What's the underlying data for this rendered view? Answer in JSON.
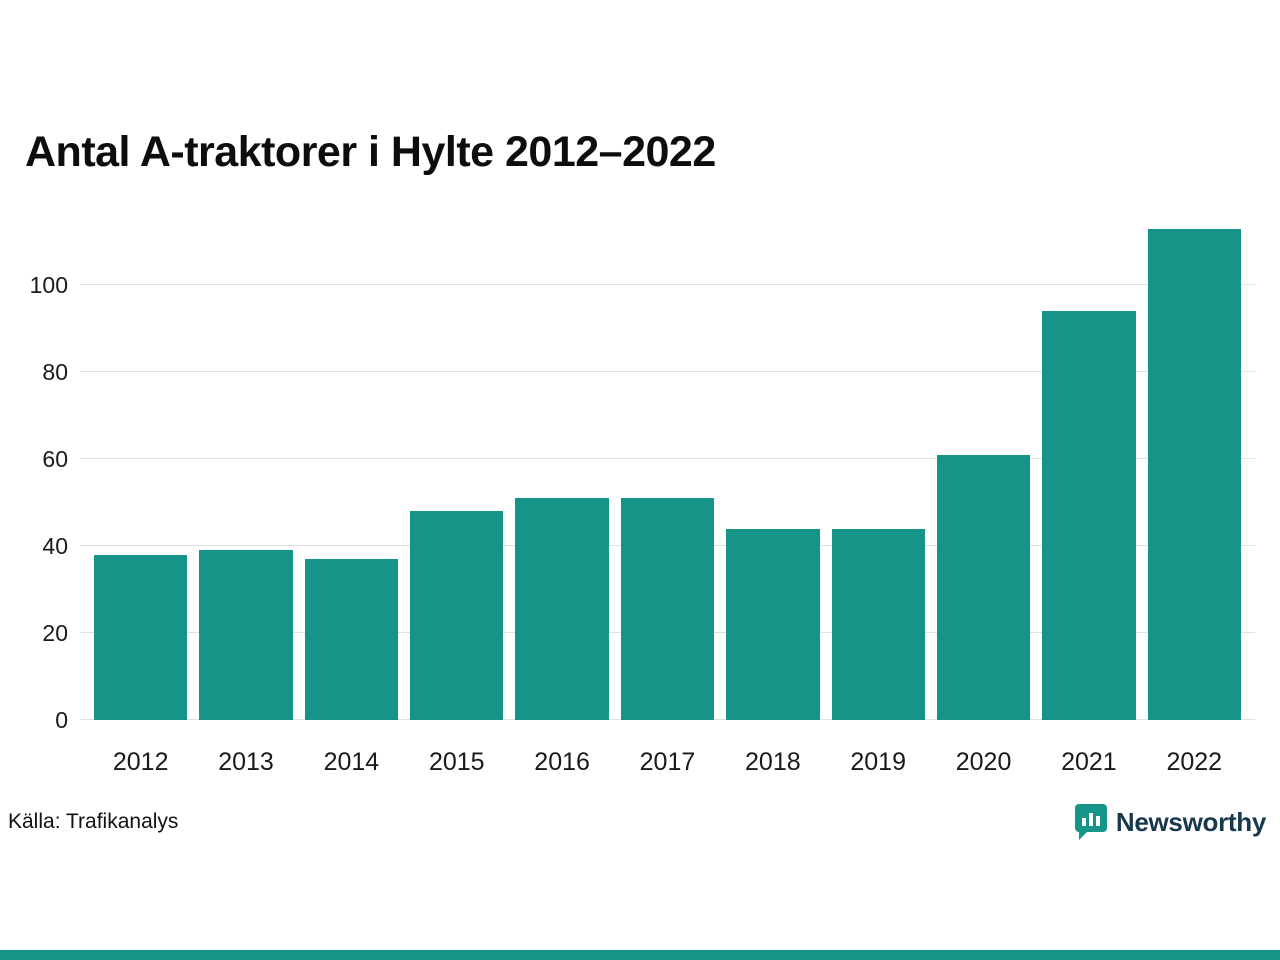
{
  "title": "Antal A-traktorer i Hylte 2012–2022",
  "source": "Källa: Trafikanalys",
  "logo": {
    "text": "Newsworthy"
  },
  "colors": {
    "bar": "#169488",
    "grid": "#e1e1e1",
    "accent": "#169488",
    "logo_icon": "#169488",
    "logo_text": "#16394d",
    "tick_text": "#1a1a1a"
  },
  "chart_data": {
    "type": "bar",
    "title": "Antal A-traktorer i Hylte 2012–2022",
    "categories": [
      "2012",
      "2013",
      "2014",
      "2015",
      "2016",
      "2017",
      "2018",
      "2019",
      "2020",
      "2021",
      "2022"
    ],
    "values": [
      38,
      39,
      37,
      48,
      51,
      51,
      44,
      44,
      61,
      94,
      113
    ],
    "xlabel": "",
    "ylabel": "",
    "ylim": [
      0,
      115
    ],
    "yticks": [
      0,
      20,
      40,
      60,
      80,
      100
    ],
    "grid": true,
    "legend": "none",
    "bar_color": "#169488"
  }
}
